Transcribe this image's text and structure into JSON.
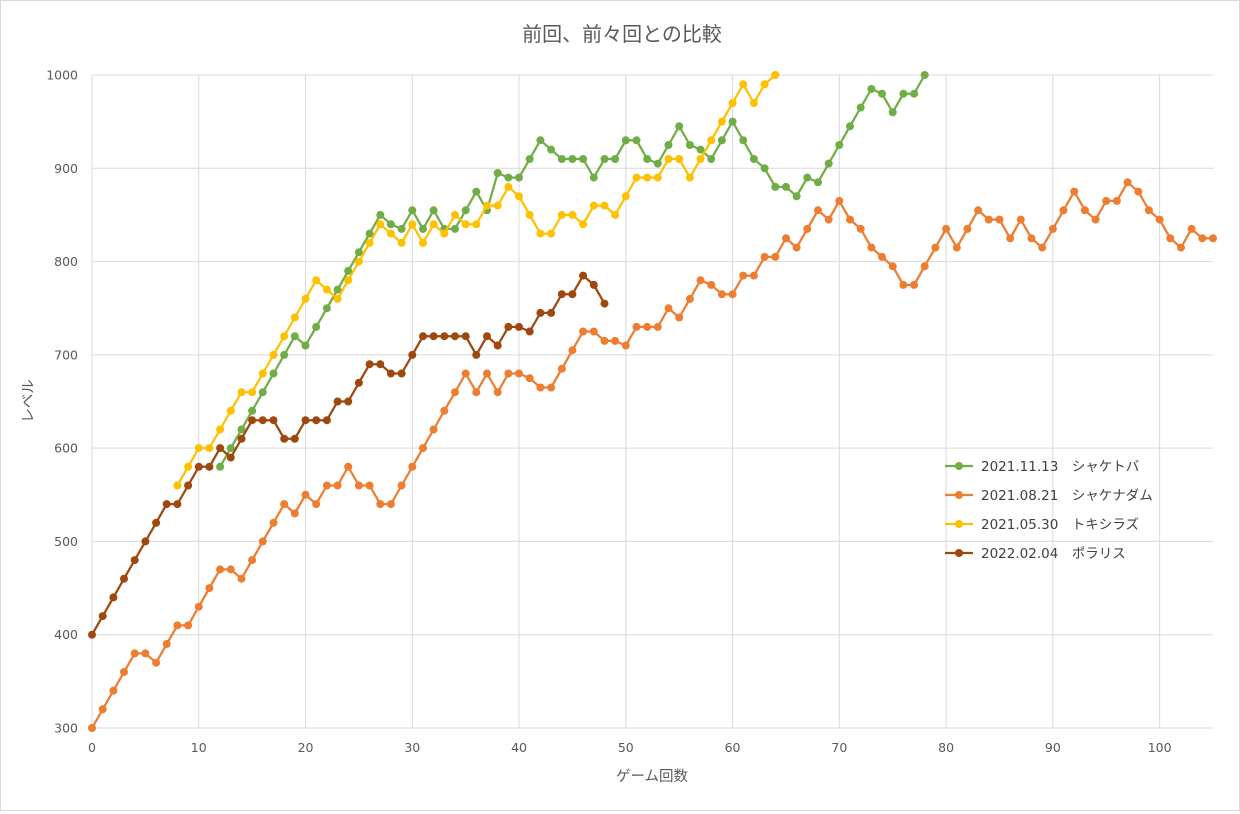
{
  "chart_data": {
    "type": "line",
    "title": "前回、前々回との比較",
    "xlabel": "ゲーム回数",
    "ylabel": "レベル",
    "xlim": [
      0,
      105
    ],
    "ylim": [
      300,
      1000
    ],
    "x_ticks": [
      0,
      10,
      20,
      30,
      40,
      50,
      60,
      70,
      80,
      90,
      100
    ],
    "y_ticks": [
      300,
      400,
      500,
      600,
      700,
      800,
      900,
      1000
    ],
    "grid": true,
    "legend_position": "right",
    "series": [
      {
        "name": "2021.11.13　シャケトバ",
        "color": "#70ad47",
        "x_start": 12,
        "values": [
          580,
          600,
          620,
          640,
          660,
          680,
          700,
          720,
          710,
          730,
          750,
          770,
          790,
          810,
          830,
          850,
          840,
          835,
          855,
          835,
          855,
          835,
          835,
          855,
          875,
          855,
          895,
          890,
          890,
          910,
          930,
          920,
          910,
          910,
          910,
          890,
          910,
          910,
          930,
          930,
          910,
          905,
          925,
          945,
          925,
          920,
          910,
          930,
          950,
          930,
          910,
          900,
          880,
          880,
          870,
          890,
          885,
          905,
          925,
          945,
          965,
          985,
          980,
          960,
          980,
          980,
          1000
        ]
      },
      {
        "name": "2021.08.21　シャケナダム",
        "color": "#ed7d31",
        "x_start": 0,
        "values": [
          300,
          320,
          340,
          360,
          380,
          380,
          370,
          390,
          410,
          410,
          430,
          450,
          470,
          470,
          460,
          480,
          500,
          520,
          540,
          530,
          550,
          540,
          560,
          560,
          580,
          560,
          560,
          540,
          540,
          560,
          580,
          600,
          620,
          640,
          660,
          680,
          660,
          680,
          660,
          680,
          680,
          675,
          665,
          665,
          685,
          705,
          725,
          725,
          715,
          715,
          710,
          730,
          730,
          730,
          750,
          740,
          760,
          780,
          775,
          765,
          765,
          785,
          785,
          805,
          805,
          825,
          815,
          835,
          855,
          845,
          865,
          845,
          835,
          815,
          805,
          795,
          775,
          775,
          795,
          815,
          835,
          815,
          835,
          855,
          845,
          845,
          825,
          845,
          825,
          815,
          835,
          855,
          875,
          855,
          845,
          865,
          865,
          885,
          875,
          855,
          845,
          825,
          815,
          835,
          825,
          825
        ]
      },
      {
        "name": "2021.05.30　トキシラズ",
        "color": "#ffc000",
        "x_start": 8,
        "values": [
          560,
          580,
          600,
          600,
          620,
          640,
          660,
          660,
          680,
          700,
          720,
          740,
          760,
          780,
          770,
          760,
          780,
          800,
          820,
          840,
          830,
          820,
          840,
          820,
          840,
          830,
          850,
          840,
          840,
          860,
          860,
          880,
          870,
          850,
          830,
          830,
          850,
          850,
          840,
          860,
          860,
          850,
          870,
          890,
          890,
          890,
          910,
          910,
          890,
          910,
          930,
          950,
          970,
          990,
          970,
          990,
          1000
        ]
      },
      {
        "name": "2022.02.04　ポラリス",
        "color": "#9e480e",
        "x_start": 0,
        "values": [
          400,
          420,
          440,
          460,
          480,
          500,
          520,
          540,
          540,
          560,
          580,
          580,
          600,
          590,
          610,
          630,
          630,
          630,
          610,
          610,
          630,
          630,
          630,
          650,
          650,
          670,
          690,
          690,
          680,
          680,
          700,
          720,
          720,
          720,
          720,
          720,
          700,
          720,
          710,
          730,
          730,
          725,
          745,
          745,
          765,
          765,
          785,
          775,
          755
        ]
      }
    ]
  }
}
